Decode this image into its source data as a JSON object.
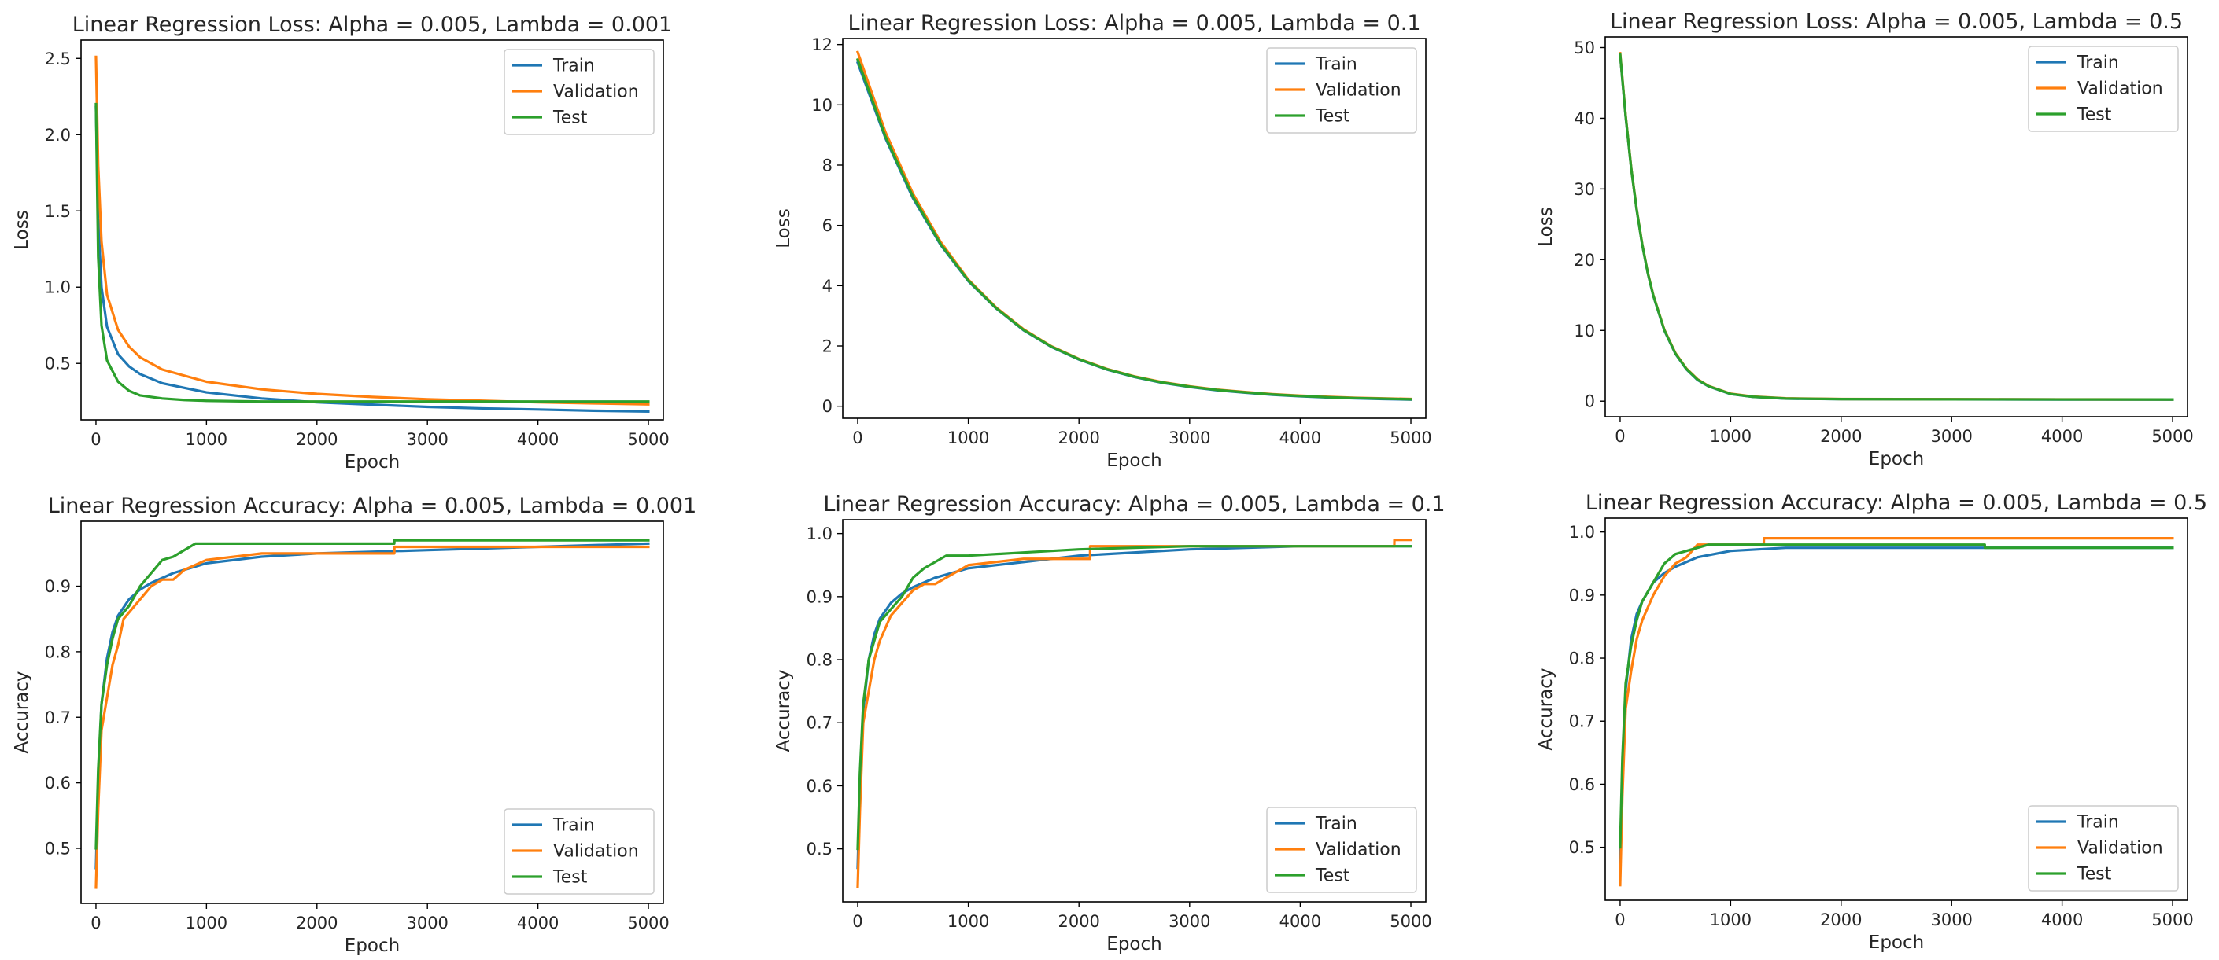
{
  "figure": {
    "background": "#ffffff"
  },
  "colors": {
    "train": "#1f77b4",
    "validation": "#ff7f0e",
    "test": "#2ca02c"
  },
  "charts": [
    {
      "type": "line",
      "title": "Linear Regression Loss: Alpha = 0.005, Lambda = 0.001",
      "xlabel": "Epoch",
      "ylabel": "Loss",
      "xlim": [
        -135,
        5135
      ],
      "ylim": [
        0.13,
        2.62
      ],
      "xticks": [
        0,
        1000,
        2000,
        3000,
        4000,
        5000
      ],
      "yticks": [
        0.5,
        1.0,
        1.5,
        2.0,
        2.5
      ],
      "yticklabels": [
        "0.5",
        "1.0",
        "1.5",
        "2.0",
        "2.5"
      ],
      "legend_position": "upper right",
      "series": [
        {
          "name": "Train",
          "color": "#1f77b4",
          "x": [
            0,
            20,
            50,
            100,
            200,
            300,
            400,
            600,
            800,
            1000,
            1500,
            2000,
            2500,
            3000,
            3500,
            4000,
            4500,
            4999
          ],
          "y": [
            2.18,
            1.45,
            1.0,
            0.74,
            0.56,
            0.48,
            0.43,
            0.37,
            0.34,
            0.31,
            0.27,
            0.245,
            0.23,
            0.215,
            0.205,
            0.198,
            0.19,
            0.185
          ]
        },
        {
          "name": "Validation",
          "color": "#ff7f0e",
          "x": [
            0,
            20,
            50,
            100,
            200,
            300,
            400,
            600,
            800,
            1000,
            1500,
            2000,
            2500,
            3000,
            3500,
            4000,
            4500,
            4999
          ],
          "y": [
            2.51,
            1.8,
            1.3,
            0.95,
            0.72,
            0.61,
            0.54,
            0.46,
            0.42,
            0.38,
            0.33,
            0.3,
            0.28,
            0.265,
            0.255,
            0.245,
            0.238,
            0.232
          ]
        },
        {
          "name": "Test",
          "color": "#2ca02c",
          "x": [
            0,
            20,
            50,
            100,
            200,
            300,
            400,
            600,
            800,
            1000,
            1500,
            2000,
            2500,
            3000,
            3500,
            4000,
            4500,
            4999
          ],
          "y": [
            2.2,
            1.2,
            0.75,
            0.52,
            0.38,
            0.32,
            0.29,
            0.27,
            0.26,
            0.255,
            0.25,
            0.25,
            0.25,
            0.25,
            0.25,
            0.25,
            0.25,
            0.25
          ]
        }
      ]
    },
    {
      "type": "line",
      "title": "Linear Regression Loss: Alpha = 0.005, Lambda = 0.1",
      "xlabel": "Epoch",
      "ylabel": "Loss",
      "xlim": [
        -135,
        5135
      ],
      "ylim": [
        -0.4,
        12.2
      ],
      "xticks": [
        0,
        1000,
        2000,
        3000,
        4000,
        5000
      ],
      "yticks": [
        0,
        2,
        4,
        6,
        8,
        10,
        12
      ],
      "yticklabels": [
        "0",
        "2",
        "4",
        "6",
        "8",
        "10",
        "12"
      ],
      "legend_position": "upper right",
      "series": [
        {
          "name": "Train",
          "color": "#1f77b4",
          "x": [
            0,
            250,
            500,
            750,
            1000,
            1250,
            1500,
            1750,
            2000,
            2250,
            2500,
            2750,
            3000,
            3250,
            3500,
            3750,
            4000,
            4250,
            4500,
            4750,
            4999
          ],
          "y": [
            11.4,
            8.9,
            6.9,
            5.35,
            4.15,
            3.25,
            2.52,
            1.97,
            1.55,
            1.22,
            0.97,
            0.78,
            0.64,
            0.53,
            0.45,
            0.38,
            0.33,
            0.29,
            0.26,
            0.24,
            0.22
          ]
        },
        {
          "name": "Validation",
          "color": "#ff7f0e",
          "x": [
            0,
            250,
            500,
            750,
            1000,
            1250,
            1500,
            1750,
            2000,
            2250,
            2500,
            2750,
            3000,
            3250,
            3500,
            3750,
            4000,
            4250,
            4500,
            4750,
            4999
          ],
          "y": [
            11.75,
            9.1,
            7.05,
            5.45,
            4.2,
            3.28,
            2.55,
            1.99,
            1.57,
            1.24,
            0.99,
            0.8,
            0.66,
            0.55,
            0.47,
            0.4,
            0.35,
            0.31,
            0.28,
            0.26,
            0.24
          ]
        },
        {
          "name": "Test",
          "color": "#2ca02c",
          "x": [
            0,
            250,
            500,
            750,
            1000,
            1250,
            1500,
            1750,
            2000,
            2250,
            2500,
            2750,
            3000,
            3250,
            3500,
            3750,
            4000,
            4250,
            4500,
            4750,
            4999
          ],
          "y": [
            11.5,
            8.95,
            6.95,
            5.38,
            4.17,
            3.26,
            2.53,
            1.98,
            1.56,
            1.23,
            0.98,
            0.79,
            0.65,
            0.54,
            0.46,
            0.39,
            0.34,
            0.3,
            0.27,
            0.25,
            0.23
          ]
        }
      ]
    },
    {
      "type": "line",
      "title": "Linear Regression Loss: Alpha = 0.005, Lambda = 0.5",
      "xlabel": "Epoch",
      "ylabel": "Loss",
      "xlim": [
        -135,
        5135
      ],
      "ylim": [
        -2.2,
        51.5
      ],
      "xticks": [
        0,
        1000,
        2000,
        3000,
        4000,
        5000
      ],
      "yticks": [
        0,
        10,
        20,
        30,
        40,
        50
      ],
      "yticklabels": [
        "0",
        "10",
        "20",
        "30",
        "40",
        "50"
      ],
      "legend_position": "upper right",
      "series": [
        {
          "name": "Train",
          "color": "#1f77b4",
          "x": [
            0,
            50,
            100,
            150,
            200,
            250,
            300,
            400,
            500,
            600,
            700,
            800,
            1000,
            1200,
            1500,
            2000,
            3000,
            4000,
            4999
          ],
          "y": [
            49.0,
            40.2,
            32.9,
            27.0,
            22.1,
            18.1,
            14.9,
            10.0,
            6.7,
            4.5,
            3.0,
            2.1,
            1.0,
            0.6,
            0.35,
            0.28,
            0.25,
            0.23,
            0.22
          ]
        },
        {
          "name": "Validation",
          "color": "#ff7f0e",
          "x": [
            0,
            50,
            100,
            150,
            200,
            250,
            300,
            400,
            500,
            600,
            700,
            800,
            1000,
            1200,
            1500,
            2000,
            3000,
            4000,
            4999
          ],
          "y": [
            49.2,
            40.4,
            33.0,
            27.1,
            22.2,
            18.2,
            15.0,
            10.1,
            6.8,
            4.6,
            3.1,
            2.15,
            1.05,
            0.65,
            0.4,
            0.3,
            0.27,
            0.25,
            0.24
          ]
        },
        {
          "name": "Test",
          "color": "#2ca02c",
          "x": [
            0,
            50,
            100,
            150,
            200,
            250,
            300,
            400,
            500,
            600,
            700,
            800,
            1000,
            1200,
            1500,
            2000,
            3000,
            4000,
            4999
          ],
          "y": [
            49.1,
            40.3,
            32.95,
            27.05,
            22.15,
            18.15,
            14.95,
            10.05,
            6.75,
            4.55,
            3.05,
            2.12,
            1.02,
            0.62,
            0.37,
            0.29,
            0.26,
            0.24,
            0.23
          ]
        }
      ]
    },
    {
      "type": "line",
      "title": "Linear Regression Accuracy: Alpha = 0.005, Lambda = 0.001",
      "xlabel": "Epoch",
      "ylabel": "Accuracy",
      "xlim": [
        -135,
        5135
      ],
      "ylim": [
        0.416,
        0.999
      ],
      "xticks": [
        0,
        1000,
        2000,
        3000,
        4000,
        5000
      ],
      "yticks": [
        0.5,
        0.6,
        0.7,
        0.8,
        0.9
      ],
      "yticklabels": [
        "0.5",
        "0.6",
        "0.7",
        "0.8",
        "0.9"
      ],
      "legend_position": "lower right",
      "series": [
        {
          "name": "Train",
          "color": "#1f77b4",
          "x": [
            0,
            20,
            50,
            100,
            150,
            200,
            300,
            400,
            500,
            700,
            1000,
            1500,
            2000,
            3000,
            4000,
            4999
          ],
          "y": [
            0.47,
            0.6,
            0.72,
            0.79,
            0.83,
            0.855,
            0.88,
            0.895,
            0.905,
            0.92,
            0.935,
            0.945,
            0.95,
            0.955,
            0.96,
            0.965
          ]
        },
        {
          "name": "Validation",
          "color": "#ff7f0e",
          "x": [
            0,
            20,
            50,
            100,
            150,
            200,
            250,
            300,
            400,
            450,
            500,
            600,
            700,
            800,
            1000,
            1500,
            2000,
            2700,
            2701,
            4999
          ],
          "y": [
            0.44,
            0.56,
            0.68,
            0.73,
            0.78,
            0.81,
            0.85,
            0.86,
            0.88,
            0.89,
            0.9,
            0.91,
            0.91,
            0.925,
            0.94,
            0.95,
            0.95,
            0.95,
            0.96,
            0.96
          ]
        },
        {
          "name": "Test",
          "color": "#2ca02c",
          "x": [
            0,
            20,
            50,
            100,
            150,
            200,
            250,
            300,
            400,
            500,
            600,
            700,
            800,
            900,
            1000,
            2700,
            2701,
            4999
          ],
          "y": [
            0.5,
            0.62,
            0.72,
            0.78,
            0.82,
            0.85,
            0.86,
            0.87,
            0.9,
            0.92,
            0.94,
            0.945,
            0.955,
            0.965,
            0.965,
            0.965,
            0.97,
            0.97
          ]
        }
      ]
    },
    {
      "type": "line",
      "title": "Linear Regression Accuracy: Alpha = 0.005, Lambda = 0.1",
      "xlabel": "Epoch",
      "ylabel": "Accuracy",
      "xlim": [
        -135,
        5135
      ],
      "ylim": [
        0.416,
        1.022
      ],
      "xticks": [
        0,
        1000,
        2000,
        3000,
        4000,
        5000
      ],
      "yticks": [
        0.5,
        0.6,
        0.7,
        0.8,
        0.9,
        1.0
      ],
      "yticklabels": [
        "0.5",
        "0.6",
        "0.7",
        "0.8",
        "0.9",
        "1.0"
      ],
      "legend_position": "lower right",
      "series": [
        {
          "name": "Train",
          "color": "#1f77b4",
          "x": [
            0,
            20,
            50,
            100,
            150,
            200,
            300,
            400,
            500,
            700,
            1000,
            1500,
            2000,
            3000,
            4000,
            4999
          ],
          "y": [
            0.47,
            0.6,
            0.72,
            0.8,
            0.84,
            0.865,
            0.89,
            0.905,
            0.915,
            0.93,
            0.945,
            0.955,
            0.965,
            0.975,
            0.98,
            0.98
          ]
        },
        {
          "name": "Validation",
          "color": "#ff7f0e",
          "x": [
            0,
            20,
            50,
            100,
            150,
            200,
            300,
            400,
            500,
            600,
            700,
            800,
            1000,
            1500,
            2100,
            2101,
            2700,
            2701,
            4850,
            4851,
            4999
          ],
          "y": [
            0.44,
            0.56,
            0.7,
            0.75,
            0.8,
            0.83,
            0.87,
            0.89,
            0.91,
            0.92,
            0.92,
            0.93,
            0.95,
            0.96,
            0.96,
            0.98,
            0.98,
            0.98,
            0.98,
            0.99,
            0.99
          ]
        },
        {
          "name": "Test",
          "color": "#2ca02c",
          "x": [
            0,
            20,
            50,
            100,
            150,
            200,
            300,
            400,
            500,
            600,
            700,
            800,
            1000,
            1500,
            2000,
            3000,
            4000,
            4999
          ],
          "y": [
            0.5,
            0.62,
            0.73,
            0.8,
            0.83,
            0.86,
            0.88,
            0.9,
            0.93,
            0.945,
            0.955,
            0.965,
            0.965,
            0.97,
            0.975,
            0.98,
            0.98,
            0.98
          ]
        }
      ]
    },
    {
      "type": "line",
      "title": "Linear Regression Accuracy: Alpha = 0.005, Lambda = 0.5",
      "xlabel": "Epoch",
      "ylabel": "Accuracy",
      "xlim": [
        -135,
        5135
      ],
      "ylim": [
        0.416,
        1.022
      ],
      "xticks": [
        0,
        1000,
        2000,
        3000,
        4000,
        5000
      ],
      "yticks": [
        0.5,
        0.6,
        0.7,
        0.8,
        0.9,
        1.0
      ],
      "yticklabels": [
        "0.5",
        "0.6",
        "0.7",
        "0.8",
        "0.9",
        "1.0"
      ],
      "legend_position": "lower right",
      "series": [
        {
          "name": "Train",
          "color": "#1f77b4",
          "x": [
            0,
            20,
            50,
            100,
            150,
            200,
            300,
            400,
            500,
            700,
            1000,
            1500,
            2000,
            3000,
            4000,
            4999
          ],
          "y": [
            0.47,
            0.62,
            0.75,
            0.83,
            0.87,
            0.89,
            0.92,
            0.935,
            0.945,
            0.96,
            0.97,
            0.975,
            0.975,
            0.975,
            0.975,
            0.975
          ]
        },
        {
          "name": "Validation",
          "color": "#ff7f0e",
          "x": [
            0,
            20,
            50,
            100,
            150,
            200,
            250,
            300,
            400,
            500,
            600,
            700,
            1300,
            1301,
            4999
          ],
          "y": [
            0.44,
            0.58,
            0.72,
            0.78,
            0.83,
            0.86,
            0.88,
            0.9,
            0.93,
            0.95,
            0.96,
            0.98,
            0.98,
            0.99,
            0.99
          ]
        },
        {
          "name": "Test",
          "color": "#2ca02c",
          "x": [
            0,
            20,
            50,
            100,
            150,
            200,
            300,
            400,
            500,
            600,
            700,
            800,
            3300,
            3301,
            4999
          ],
          "y": [
            0.5,
            0.64,
            0.76,
            0.82,
            0.86,
            0.89,
            0.92,
            0.95,
            0.965,
            0.97,
            0.975,
            0.98,
            0.98,
            0.975,
            0.975
          ]
        }
      ]
    }
  ],
  "chart_data": [
    {
      "type": "line",
      "title": "Linear Regression Loss: Alpha = 0.005, Lambda = 0.001",
      "xlabel": "Epoch",
      "ylabel": "Loss",
      "series_names": [
        "Train",
        "Validation",
        "Test"
      ]
    },
    {
      "type": "line",
      "title": "Linear Regression Loss: Alpha = 0.005, Lambda = 0.1",
      "xlabel": "Epoch",
      "ylabel": "Loss",
      "series_names": [
        "Train",
        "Validation",
        "Test"
      ]
    },
    {
      "type": "line",
      "title": "Linear Regression Loss: Alpha = 0.005, Lambda = 0.5",
      "xlabel": "Epoch",
      "ylabel": "Loss",
      "series_names": [
        "Train",
        "Validation",
        "Test"
      ]
    },
    {
      "type": "line",
      "title": "Linear Regression Accuracy: Alpha = 0.005, Lambda = 0.001",
      "xlabel": "Epoch",
      "ylabel": "Accuracy",
      "series_names": [
        "Train",
        "Validation",
        "Test"
      ]
    },
    {
      "type": "line",
      "title": "Linear Regression Accuracy: Alpha = 0.005, Lambda = 0.1",
      "xlabel": "Epoch",
      "ylabel": "Accuracy",
      "series_names": [
        "Train",
        "Validation",
        "Test"
      ]
    },
    {
      "type": "line",
      "title": "Linear Regression Accuracy: Alpha = 0.005, Lambda = 0.5",
      "xlabel": "Epoch",
      "ylabel": "Accuracy",
      "series_names": [
        "Train",
        "Validation",
        "Test"
      ]
    }
  ]
}
